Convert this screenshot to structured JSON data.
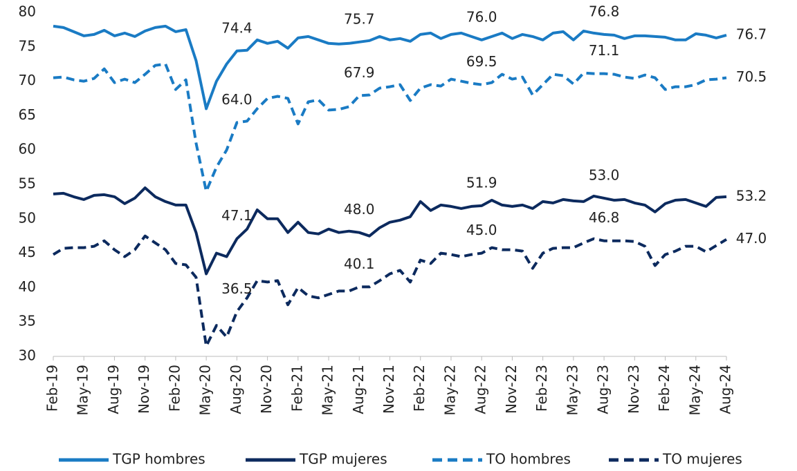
{
  "chart_data": {
    "type": "line",
    "categories": [
      "Feb-19",
      null,
      null,
      "May-19",
      null,
      null,
      "Aug-19",
      null,
      null,
      "Nov-19",
      null,
      null,
      "Feb-20",
      null,
      null,
      "May-20",
      null,
      null,
      "Aug-20",
      null,
      null,
      "Nov-20",
      null,
      null,
      "Feb-21",
      null,
      null,
      "May-21",
      null,
      null,
      "Aug-21",
      null,
      null,
      "Nov-21",
      null,
      null,
      "Feb-22",
      null,
      null,
      "May-22",
      null,
      null,
      "Aug-22",
      null,
      null,
      "Nov-22",
      null,
      null,
      "Feb-23",
      null,
      null,
      "May-23",
      null,
      null,
      "Aug-23",
      null,
      null,
      "Nov-23",
      null,
      null,
      "Feb-24",
      null,
      null,
      "May-24",
      null,
      null,
      "Aug-24"
    ],
    "series": [
      {
        "name": "TGP hombres",
        "color": "#1a7bc4",
        "style": "solid",
        "values": [
          78.0,
          77.8,
          77.2,
          76.6,
          76.8,
          77.4,
          76.6,
          77.0,
          76.5,
          77.3,
          77.8,
          78.0,
          77.2,
          77.5,
          73.0,
          66.0,
          70.0,
          72.5,
          74.4,
          74.5,
          76.0,
          75.5,
          75.8,
          74.8,
          76.3,
          76.5,
          76.0,
          75.5,
          75.4,
          75.5,
          75.7,
          75.9,
          76.5,
          76.0,
          76.2,
          75.8,
          76.8,
          77.0,
          76.2,
          76.8,
          77.0,
          76.5,
          76.0,
          76.5,
          77.0,
          76.2,
          76.8,
          76.5,
          76.0,
          77.0,
          77.2,
          76.0,
          77.3,
          77.0,
          76.8,
          76.7,
          76.2,
          76.6,
          76.6,
          76.5,
          76.4,
          76.0,
          76.0,
          76.9,
          76.7,
          76.3,
          76.7
        ],
        "value_labels": [
          null,
          null,
          null,
          null,
          null,
          null,
          null,
          null,
          null,
          null,
          null,
          null,
          null,
          null,
          null,
          null,
          null,
          null,
          "74.4",
          null,
          null,
          null,
          null,
          null,
          null,
          null,
          null,
          null,
          null,
          null,
          "75.7",
          null,
          null,
          null,
          null,
          null,
          null,
          null,
          null,
          null,
          null,
          null,
          "76.0",
          null,
          null,
          null,
          null,
          null,
          null,
          null,
          null,
          null,
          null,
          null,
          "76.8",
          null,
          null,
          null,
          null,
          null,
          null,
          null,
          null,
          null,
          null,
          null,
          "76.7"
        ]
      },
      {
        "name": "TGP mujeres",
        "color": "#0c2a5e",
        "style": "solid",
        "values": [
          53.6,
          53.7,
          53.2,
          52.8,
          53.4,
          53.5,
          53.2,
          52.2,
          53.0,
          54.5,
          53.2,
          52.5,
          52.0,
          52.0,
          48.0,
          42.0,
          45.0,
          44.5,
          47.1,
          48.5,
          51.3,
          50.0,
          50.0,
          48.0,
          49.5,
          48.0,
          47.8,
          48.5,
          48.0,
          48.2,
          48.0,
          47.5,
          48.7,
          49.5,
          49.8,
          50.3,
          52.5,
          51.2,
          52.0,
          51.8,
          51.5,
          51.8,
          51.9,
          52.7,
          52.0,
          51.8,
          52.0,
          51.5,
          52.5,
          52.3,
          52.8,
          52.6,
          52.5,
          53.3,
          53.0,
          52.7,
          52.8,
          52.3,
          52.0,
          51.0,
          52.2,
          52.7,
          52.8,
          52.3,
          51.8,
          53.1,
          53.2
        ],
        "value_labels": [
          null,
          null,
          null,
          null,
          null,
          null,
          null,
          null,
          null,
          null,
          null,
          null,
          null,
          null,
          null,
          null,
          null,
          null,
          "47.1",
          null,
          null,
          null,
          null,
          null,
          null,
          null,
          null,
          null,
          null,
          null,
          "48.0",
          null,
          null,
          null,
          null,
          null,
          null,
          null,
          null,
          null,
          null,
          null,
          "51.9",
          null,
          null,
          null,
          null,
          null,
          null,
          null,
          null,
          null,
          null,
          null,
          "53.0",
          null,
          null,
          null,
          null,
          null,
          null,
          null,
          null,
          null,
          null,
          null,
          "53.2"
        ]
      },
      {
        "name": "TO hombres",
        "color": "#1a7bc4",
        "style": "dashed",
        "values": [
          70.5,
          70.6,
          70.2,
          70.0,
          70.4,
          71.8,
          69.8,
          70.3,
          69.8,
          71.0,
          72.3,
          72.5,
          68.8,
          70.2,
          61.0,
          54.0,
          57.5,
          60.0,
          64.0,
          64.2,
          66.0,
          67.5,
          67.8,
          67.5,
          63.8,
          67.0,
          67.3,
          65.8,
          65.9,
          66.3,
          67.9,
          68.0,
          69.0,
          69.2,
          69.5,
          67.2,
          69.0,
          69.5,
          69.3,
          70.3,
          70.0,
          69.7,
          69.5,
          69.8,
          71.0,
          70.3,
          70.6,
          68.0,
          69.5,
          71.0,
          70.8,
          69.6,
          71.2,
          71.1,
          71.1,
          71.0,
          70.6,
          70.4,
          70.9,
          70.5,
          68.8,
          69.2,
          69.2,
          69.5,
          70.2,
          70.3,
          70.5
        ],
        "value_labels": [
          null,
          null,
          null,
          null,
          null,
          null,
          null,
          null,
          null,
          null,
          null,
          null,
          null,
          null,
          null,
          null,
          null,
          null,
          "64.0",
          null,
          null,
          null,
          null,
          null,
          null,
          null,
          null,
          null,
          null,
          null,
          "67.9",
          null,
          null,
          null,
          null,
          null,
          null,
          null,
          null,
          null,
          null,
          null,
          "69.5",
          null,
          null,
          null,
          null,
          null,
          null,
          null,
          null,
          null,
          null,
          null,
          "71.1",
          null,
          null,
          null,
          null,
          null,
          null,
          null,
          null,
          null,
          null,
          null,
          "70.5"
        ]
      },
      {
        "name": "TO mujeres",
        "color": "#0c2a5e",
        "style": "dashed",
        "values": [
          44.8,
          45.7,
          45.8,
          45.8,
          46.0,
          46.8,
          45.5,
          44.5,
          45.5,
          47.5,
          46.5,
          45.5,
          43.5,
          43.3,
          41.5,
          31.5,
          34.5,
          32.8,
          36.5,
          38.5,
          41.0,
          40.8,
          41.0,
          37.5,
          40.0,
          38.8,
          38.5,
          39.0,
          39.5,
          39.5,
          40.1,
          40.1,
          41.0,
          42.0,
          42.5,
          40.8,
          44.0,
          43.5,
          45.0,
          44.8,
          44.5,
          44.8,
          45.0,
          45.8,
          45.5,
          45.5,
          45.3,
          42.8,
          45.0,
          45.7,
          45.8,
          45.8,
          46.5,
          47.1,
          46.8,
          46.8,
          46.8,
          46.7,
          46.0,
          43.2,
          44.8,
          45.3,
          46.0,
          46.0,
          45.2,
          46.1,
          47.0
        ],
        "value_labels": [
          null,
          null,
          null,
          null,
          null,
          null,
          null,
          null,
          null,
          null,
          null,
          null,
          null,
          null,
          null,
          null,
          null,
          null,
          "36.5",
          null,
          null,
          null,
          null,
          null,
          null,
          null,
          null,
          null,
          null,
          null,
          "40.1",
          null,
          null,
          null,
          null,
          null,
          null,
          null,
          null,
          null,
          null,
          null,
          "45.0",
          null,
          null,
          null,
          null,
          null,
          null,
          null,
          null,
          null,
          null,
          null,
          "46.8",
          null,
          null,
          null,
          null,
          null,
          null,
          null,
          null,
          null,
          null,
          null,
          "47.0"
        ]
      }
    ],
    "ylim": [
      30,
      80
    ],
    "yticks": [
      30,
      35,
      40,
      45,
      50,
      55,
      60,
      65,
      70,
      75,
      80
    ],
    "legend": "bottom"
  }
}
